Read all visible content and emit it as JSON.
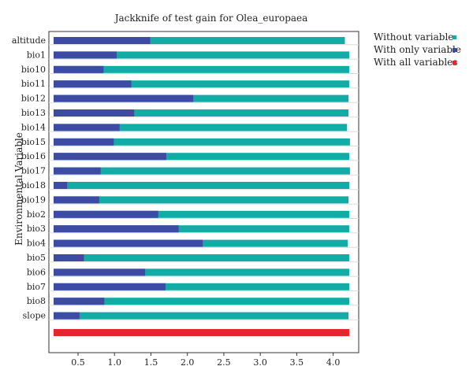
{
  "chart_data": {
    "type": "bar",
    "title": "Jackknife of test gain for Olea_europaea",
    "xlabel": "",
    "ylabel": "Environmental Variable",
    "xlim": [
      0.1,
      4.35
    ],
    "xticks": [
      0.5,
      1.0,
      1.5,
      2.0,
      2.5,
      3.0,
      3.5,
      4.0
    ],
    "xtick_labels": [
      "0.5",
      "1.0",
      "1.5",
      "2.0",
      "2.5",
      "3.0",
      "3.5",
      "4.0"
    ],
    "categories": [
      "altitude",
      "bio1",
      "bio10",
      "bio11",
      "bio12",
      "bio13",
      "bio14",
      "bio15",
      "bio16",
      "bio17",
      "bio18",
      "bio19",
      "bio2",
      "bio3",
      "bio4",
      "bio5",
      "bio6",
      "bio7",
      "bio8",
      "slope"
    ],
    "series": [
      {
        "name": "Without variable",
        "color": "#13ABA5",
        "values": [
          4.16,
          4.22,
          4.22,
          4.22,
          4.21,
          4.21,
          4.19,
          4.23,
          4.22,
          4.23,
          4.22,
          4.21,
          4.22,
          4.22,
          4.2,
          4.22,
          4.22,
          4.22,
          4.22,
          4.21
        ]
      },
      {
        "name": "With only variable",
        "color": "#3D4BA5",
        "values": [
          1.49,
          1.03,
          0.85,
          1.23,
          2.08,
          1.27,
          1.07,
          0.99,
          1.71,
          0.81,
          0.35,
          0.79,
          1.6,
          1.88,
          2.21,
          0.58,
          1.42,
          1.7,
          0.86,
          0.52
        ]
      }
    ],
    "all_variables": {
      "name": "With all variables",
      "color": "#E8262A",
      "value": 4.22
    },
    "grid": true,
    "legend_position": "right"
  }
}
